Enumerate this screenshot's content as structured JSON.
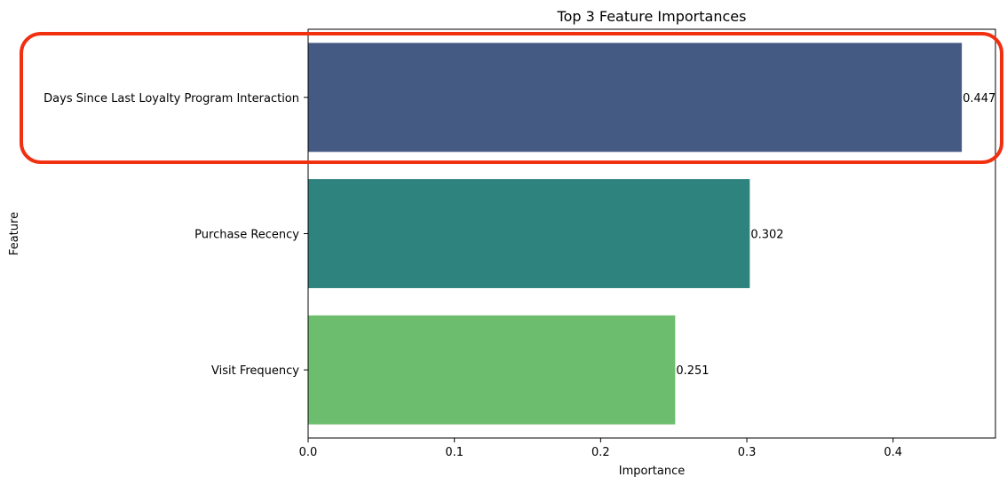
{
  "chart_data": {
    "type": "bar",
    "orientation": "horizontal",
    "title": "Top 3 Feature Importances",
    "xlabel": "Importance",
    "ylabel": "Feature",
    "categories": [
      "Days Since Last Loyalty Program Interaction",
      "Purchase Recency",
      "Visit Frequency"
    ],
    "values": [
      0.447,
      0.302,
      0.251
    ],
    "data_labels": [
      "0.447",
      "0.302",
      "0.251"
    ],
    "bar_colors": [
      "#455a82",
      "#2e837f",
      "#6dbd6e"
    ],
    "xlim": [
      0,
      0.47
    ],
    "xticks": [
      0.0,
      0.1,
      0.2,
      0.3,
      0.4
    ],
    "xtick_labels": [
      "0.0",
      "0.1",
      "0.2",
      "0.3",
      "0.4"
    ],
    "grid": false,
    "highlight": {
      "category_index": 0,
      "color": "#f03010",
      "style": "rounded-rectangle-outline"
    }
  }
}
